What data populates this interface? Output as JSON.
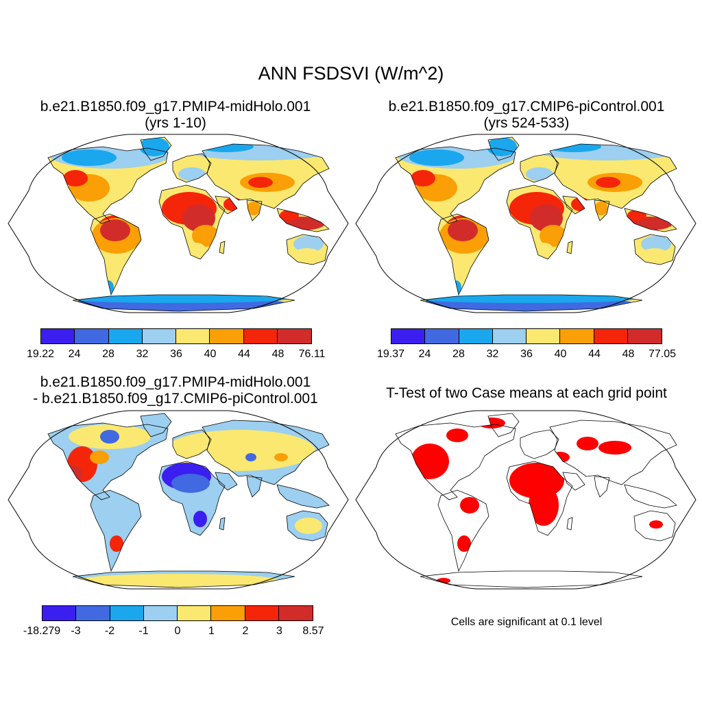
{
  "title": "ANN FSDSVI (W/m^2)",
  "panels": [
    {
      "title_line1": "b.e21.B1850.f09_g17.PMIP4-midHolo.001",
      "title_line2": "(yrs 1-10)"
    },
    {
      "title_line1": "b.e21.B1850.f09_g17.CMIP6-piControl.001",
      "title_line2": "(yrs 524-533)"
    },
    {
      "title_line1": "b.e21.B1850.f09_g17.PMIP4-midHolo.001",
      "title_line2": "- b.e21.B1850.f09_g17.CMIP6-piControl.001"
    },
    {
      "title_line1": "T-Test of two Case means at each grid point"
    }
  ],
  "colorbars": [
    {
      "labels": [
        "19.22",
        "24",
        "28",
        "32",
        "36",
        "40",
        "44",
        "48",
        "76.11"
      ]
    },
    {
      "labels": [
        "19.37",
        "24",
        "28",
        "32",
        "36",
        "40",
        "44",
        "48",
        "77.05"
      ]
    },
    {
      "labels": [
        "-18.279",
        "-3",
        "-2",
        "-1",
        "0",
        "1",
        "2",
        "3",
        "8.57"
      ]
    }
  ],
  "colors": [
    "#3b1ff0",
    "#4169e1",
    "#1aa7ee",
    "#9ccff0",
    "#fbe870",
    "#fa9f05",
    "#f5250a",
    "#d12c2a"
  ],
  "significance_color": "#ff0000",
  "significance_note": "Cells are significant at 0.1 level"
}
